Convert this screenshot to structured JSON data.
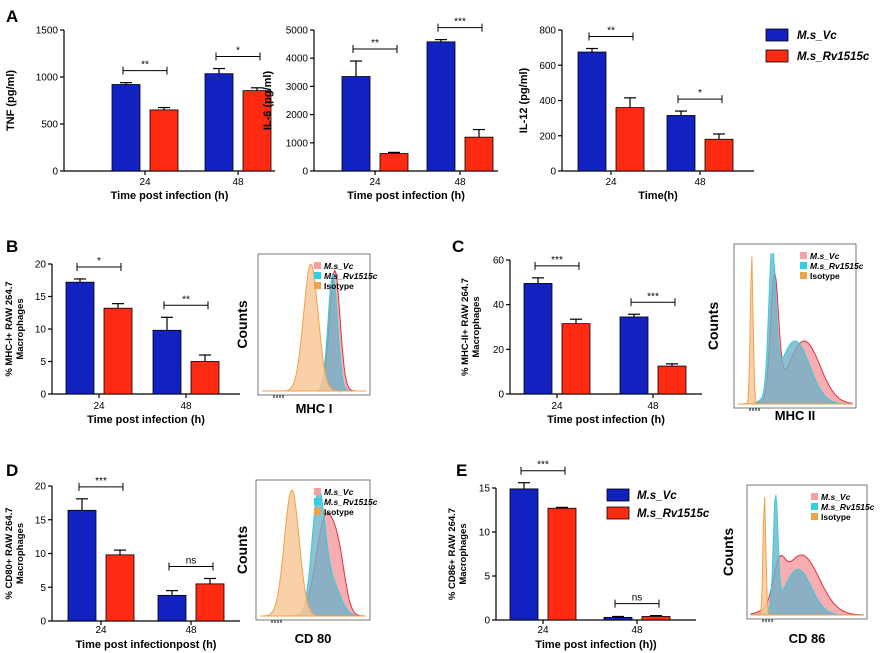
{
  "colors": {
    "vc": "#1222c0",
    "rv": "#ff2a12",
    "isotype": "#f0a24a",
    "isotype_fill": "#f8c898",
    "rv_fill": "#6fb0c8",
    "rv_line": "#2fd0e0",
    "vc_fill": "#f6a0a4",
    "vc_line": "#e23038"
  },
  "legend": {
    "vc": "M.s_Vc",
    "rv": "M.s_Rv1515c"
  },
  "panel_letters": [
    "A",
    "B",
    "C",
    "D",
    "E"
  ],
  "chart_data": [
    {
      "id": "tnf",
      "type": "bar",
      "ylabel": "TNF (pg/ml)",
      "xlabel": "Time post infection (h)",
      "categories": [
        "24",
        "48"
      ],
      "ylim": [
        0,
        1500
      ],
      "yticks": [
        "0",
        "500",
        "1000",
        "1500"
      ],
      "series": [
        {
          "name": "M.s_Vc",
          "values": [
            920,
            1035
          ],
          "errors": [
            20,
            55
          ]
        },
        {
          "name": "M.s_Rv1515c",
          "values": [
            650,
            855
          ],
          "errors": [
            25,
            30
          ]
        }
      ],
      "significance": [
        "**",
        "*"
      ]
    },
    {
      "id": "il6",
      "type": "bar",
      "ylabel": "IL-6 (pg/ml)",
      "xlabel": "Time post infection (h)",
      "categories": [
        "24",
        "48"
      ],
      "ylim": [
        0,
        5000
      ],
      "yticks": [
        "0",
        "1000",
        "2000",
        "3000",
        "4000",
        "5000"
      ],
      "series": [
        {
          "name": "M.s_Vc",
          "values": [
            3350,
            4580
          ],
          "errors": [
            550,
            80
          ]
        },
        {
          "name": "M.s_Rv1515c",
          "values": [
            620,
            1200
          ],
          "errors": [
            40,
            270
          ]
        }
      ],
      "significance": [
        "**",
        "***"
      ]
    },
    {
      "id": "il12",
      "type": "bar",
      "ylabel": "IL-12 (pg/ml)",
      "xlabel": "Time(h)",
      "categories": [
        "24",
        "48"
      ],
      "ylim": [
        0,
        800
      ],
      "yticks": [
        "0",
        "200",
        "400",
        "600",
        "800"
      ],
      "series": [
        {
          "name": "M.s_Vc",
          "values": [
            675,
            315
          ],
          "errors": [
            20,
            25
          ]
        },
        {
          "name": "M.s_Rv1515c",
          "values": [
            360,
            180
          ],
          "errors": [
            55,
            30
          ]
        }
      ],
      "significance": [
        "**",
        "*"
      ]
    },
    {
      "id": "mhc1",
      "type": "bar",
      "ylabel": "% MHC-I+ RAW 264.7 Macrophages",
      "xlabel": "Time post infection (h)",
      "categories": [
        "24",
        "48"
      ],
      "ylim": [
        0,
        20
      ],
      "yticks": [
        "0",
        "5",
        "10",
        "15",
        "20"
      ],
      "series": [
        {
          "name": "M.s_Vc",
          "values": [
            17.2,
            9.8
          ],
          "errors": [
            0.5,
            2.0
          ]
        },
        {
          "name": "M.s_Rv1515c",
          "values": [
            13.2,
            5.0
          ],
          "errors": [
            0.7,
            1.0
          ]
        }
      ],
      "significance": [
        "*",
        "**"
      ]
    },
    {
      "id": "mhc2",
      "type": "bar",
      "ylabel": "% MHC-II+ RAW 264.7 Macrophages",
      "xlabel": "Time post infection (h)",
      "categories": [
        "24",
        "48"
      ],
      "ylim": [
        0,
        60
      ],
      "yticks": [
        "0",
        "20",
        "40",
        "60"
      ],
      "series": [
        {
          "name": "M.s_Vc",
          "values": [
            49.5,
            34.5
          ],
          "errors": [
            2.5,
            1.2
          ]
        },
        {
          "name": "M.s_Rv1515c",
          "values": [
            31.5,
            12.5
          ],
          "errors": [
            2.0,
            1.0
          ]
        }
      ],
      "significance": [
        "***",
        "***"
      ]
    },
    {
      "id": "cd80",
      "type": "bar",
      "ylabel": "% CD80+ RAW 264.7 Macrophages",
      "xlabel": "Time post infectionpost (h)",
      "categories": [
        "24",
        "48"
      ],
      "ylim": [
        0,
        20
      ],
      "yticks": [
        "0",
        "5",
        "10",
        "15",
        "20"
      ],
      "series": [
        {
          "name": "M.s_Vc",
          "values": [
            16.4,
            3.8
          ],
          "errors": [
            1.7,
            0.7
          ]
        },
        {
          "name": "M.s_Rv1515c",
          "values": [
            9.8,
            5.5
          ],
          "errors": [
            0.7,
            0.8
          ]
        }
      ],
      "significance": [
        "***",
        "ns"
      ]
    },
    {
      "id": "cd86",
      "type": "bar",
      "ylabel": "% CD86+ RAW 264.7 Macrophages",
      "xlabel": "Time post infection (h))",
      "categories": [
        "24",
        "48"
      ],
      "ylim": [
        0,
        15
      ],
      "yticks": [
        "0",
        "5",
        "10",
        "15"
      ],
      "series": [
        {
          "name": "M.s_Vc",
          "values": [
            14.9,
            0.3
          ],
          "errors": [
            0.7,
            0.1
          ]
        },
        {
          "name": "M.s_Rv1515c",
          "values": [
            12.7,
            0.4
          ],
          "errors": [
            0.1,
            0.1
          ]
        }
      ],
      "significance": [
        "***",
        "ns"
      ]
    }
  ],
  "flow_panels": [
    {
      "id": "flow-mhc1",
      "xlabel": "MHC I",
      "ylabel": "Counts",
      "legend": [
        "M.s_Vc",
        "M.s_Rv1515c",
        "Isotype"
      ]
    },
    {
      "id": "flow-mhc2",
      "xlabel": "MHC II",
      "ylabel": "Counts",
      "legend": [
        "M.s_Vc",
        "M.s_Rv1515c",
        "Isotype"
      ]
    },
    {
      "id": "flow-cd80",
      "xlabel": "CD 80",
      "ylabel": "Counts",
      "legend": [
        "M.s_Vc",
        "M.s_Rv1515c",
        "Isotype"
      ]
    },
    {
      "id": "flow-cd86",
      "xlabel": "CD 86",
      "ylabel": "Counts",
      "legend": [
        "M.s_Vc",
        "M.s_Rv1515c",
        "Isotype"
      ]
    }
  ]
}
